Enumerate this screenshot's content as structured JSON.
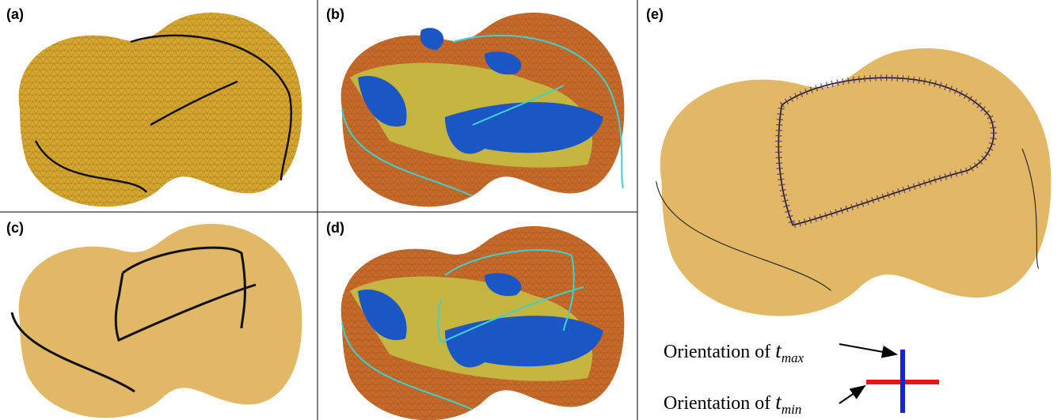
{
  "panels": [
    {
      "label": "(a)"
    },
    {
      "label": "(b)"
    },
    {
      "label": "(c)"
    },
    {
      "label": "(d)"
    },
    {
      "label": "(e)"
    }
  ],
  "legend": [
    {
      "prefix": "Orientation of ",
      "symbol": "t",
      "subscript": "max"
    },
    {
      "prefix": "Orientation of ",
      "symbol": "t",
      "subscript": "min"
    }
  ]
}
